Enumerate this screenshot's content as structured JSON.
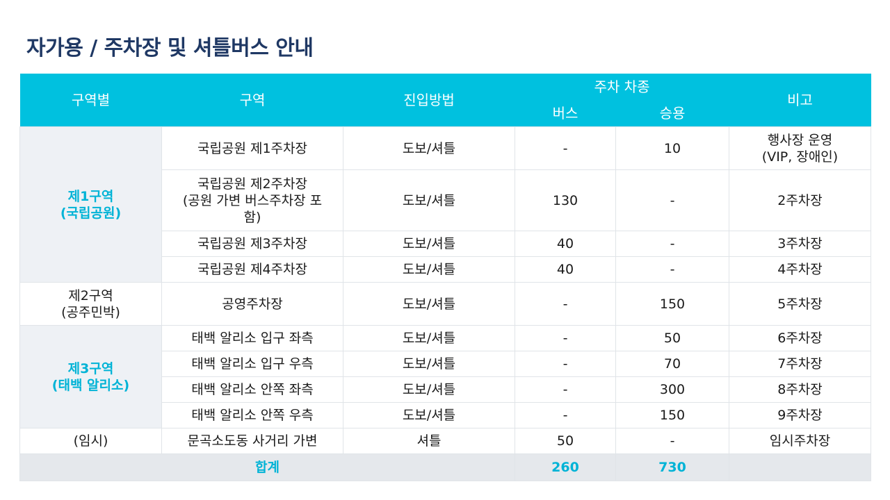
{
  "title": "자가용 / 주차장 및 셔틀버스 안내",
  "table": {
    "headers": {
      "zone_group": "구역별",
      "zone": "구역",
      "access": "진입방법",
      "parking_type": "주차 차종",
      "bus": "버스",
      "car": "승용",
      "note": "비고"
    },
    "groups": [
      {
        "name": "제1구역\n(국립공원)"
      },
      {
        "name": "제2구역\n(공주민박)"
      },
      {
        "name": "제3구역\n(태백 알리소)"
      },
      {
        "name": "(임시)"
      }
    ],
    "rows": [
      {
        "zone": "국립공원 제1주차장",
        "access": "도보/셔틀",
        "bus": "-",
        "car": "10",
        "note": "행사장 운영\n(VIP, 장애인)"
      },
      {
        "zone": "국립공원 제2주차장\n(공원 가변 버스주차장 포\n함)",
        "access": "도보/셔틀",
        "bus": "130",
        "car": "-",
        "note": "2주차장"
      },
      {
        "zone": "국립공원 제3주차장",
        "access": "도보/셔틀",
        "bus": "40",
        "car": "-",
        "note": "3주차장"
      },
      {
        "zone": "국립공원 제4주차장",
        "access": "도보/셔틀",
        "bus": "40",
        "car": "-",
        "note": "4주차장"
      },
      {
        "zone": "공영주차장",
        "access": "도보/셔틀",
        "bus": "-",
        "car": "150",
        "note": "5주차장"
      },
      {
        "zone": "태백 알리소 입구 좌측",
        "access": "도보/셔틀",
        "bus": "-",
        "car": "50",
        "note": "6주차장"
      },
      {
        "zone": "태백 알리소 입구 우측",
        "access": "도보/셔틀",
        "bus": "-",
        "car": "70",
        "note": "7주차장"
      },
      {
        "zone": "태백 알리소 안쪽 좌측",
        "access": "도보/셔틀",
        "bus": "-",
        "car": "300",
        "note": "8주차장"
      },
      {
        "zone": "태백 알리소 안쪽 우측",
        "access": "도보/셔틀",
        "bus": "-",
        "car": "150",
        "note": "9주차장"
      },
      {
        "zone": "문곡소도동 사거리 가변",
        "access": "셔틀",
        "bus": "50",
        "car": "-",
        "note": "임시주차장"
      }
    ],
    "total": {
      "label": "합계",
      "bus": "260",
      "car": "730"
    }
  },
  "colors": {
    "header_bg": "#00c1df",
    "title": "#1f3864",
    "accent_text": "#00b3d6",
    "shade": "#eef1f5"
  }
}
